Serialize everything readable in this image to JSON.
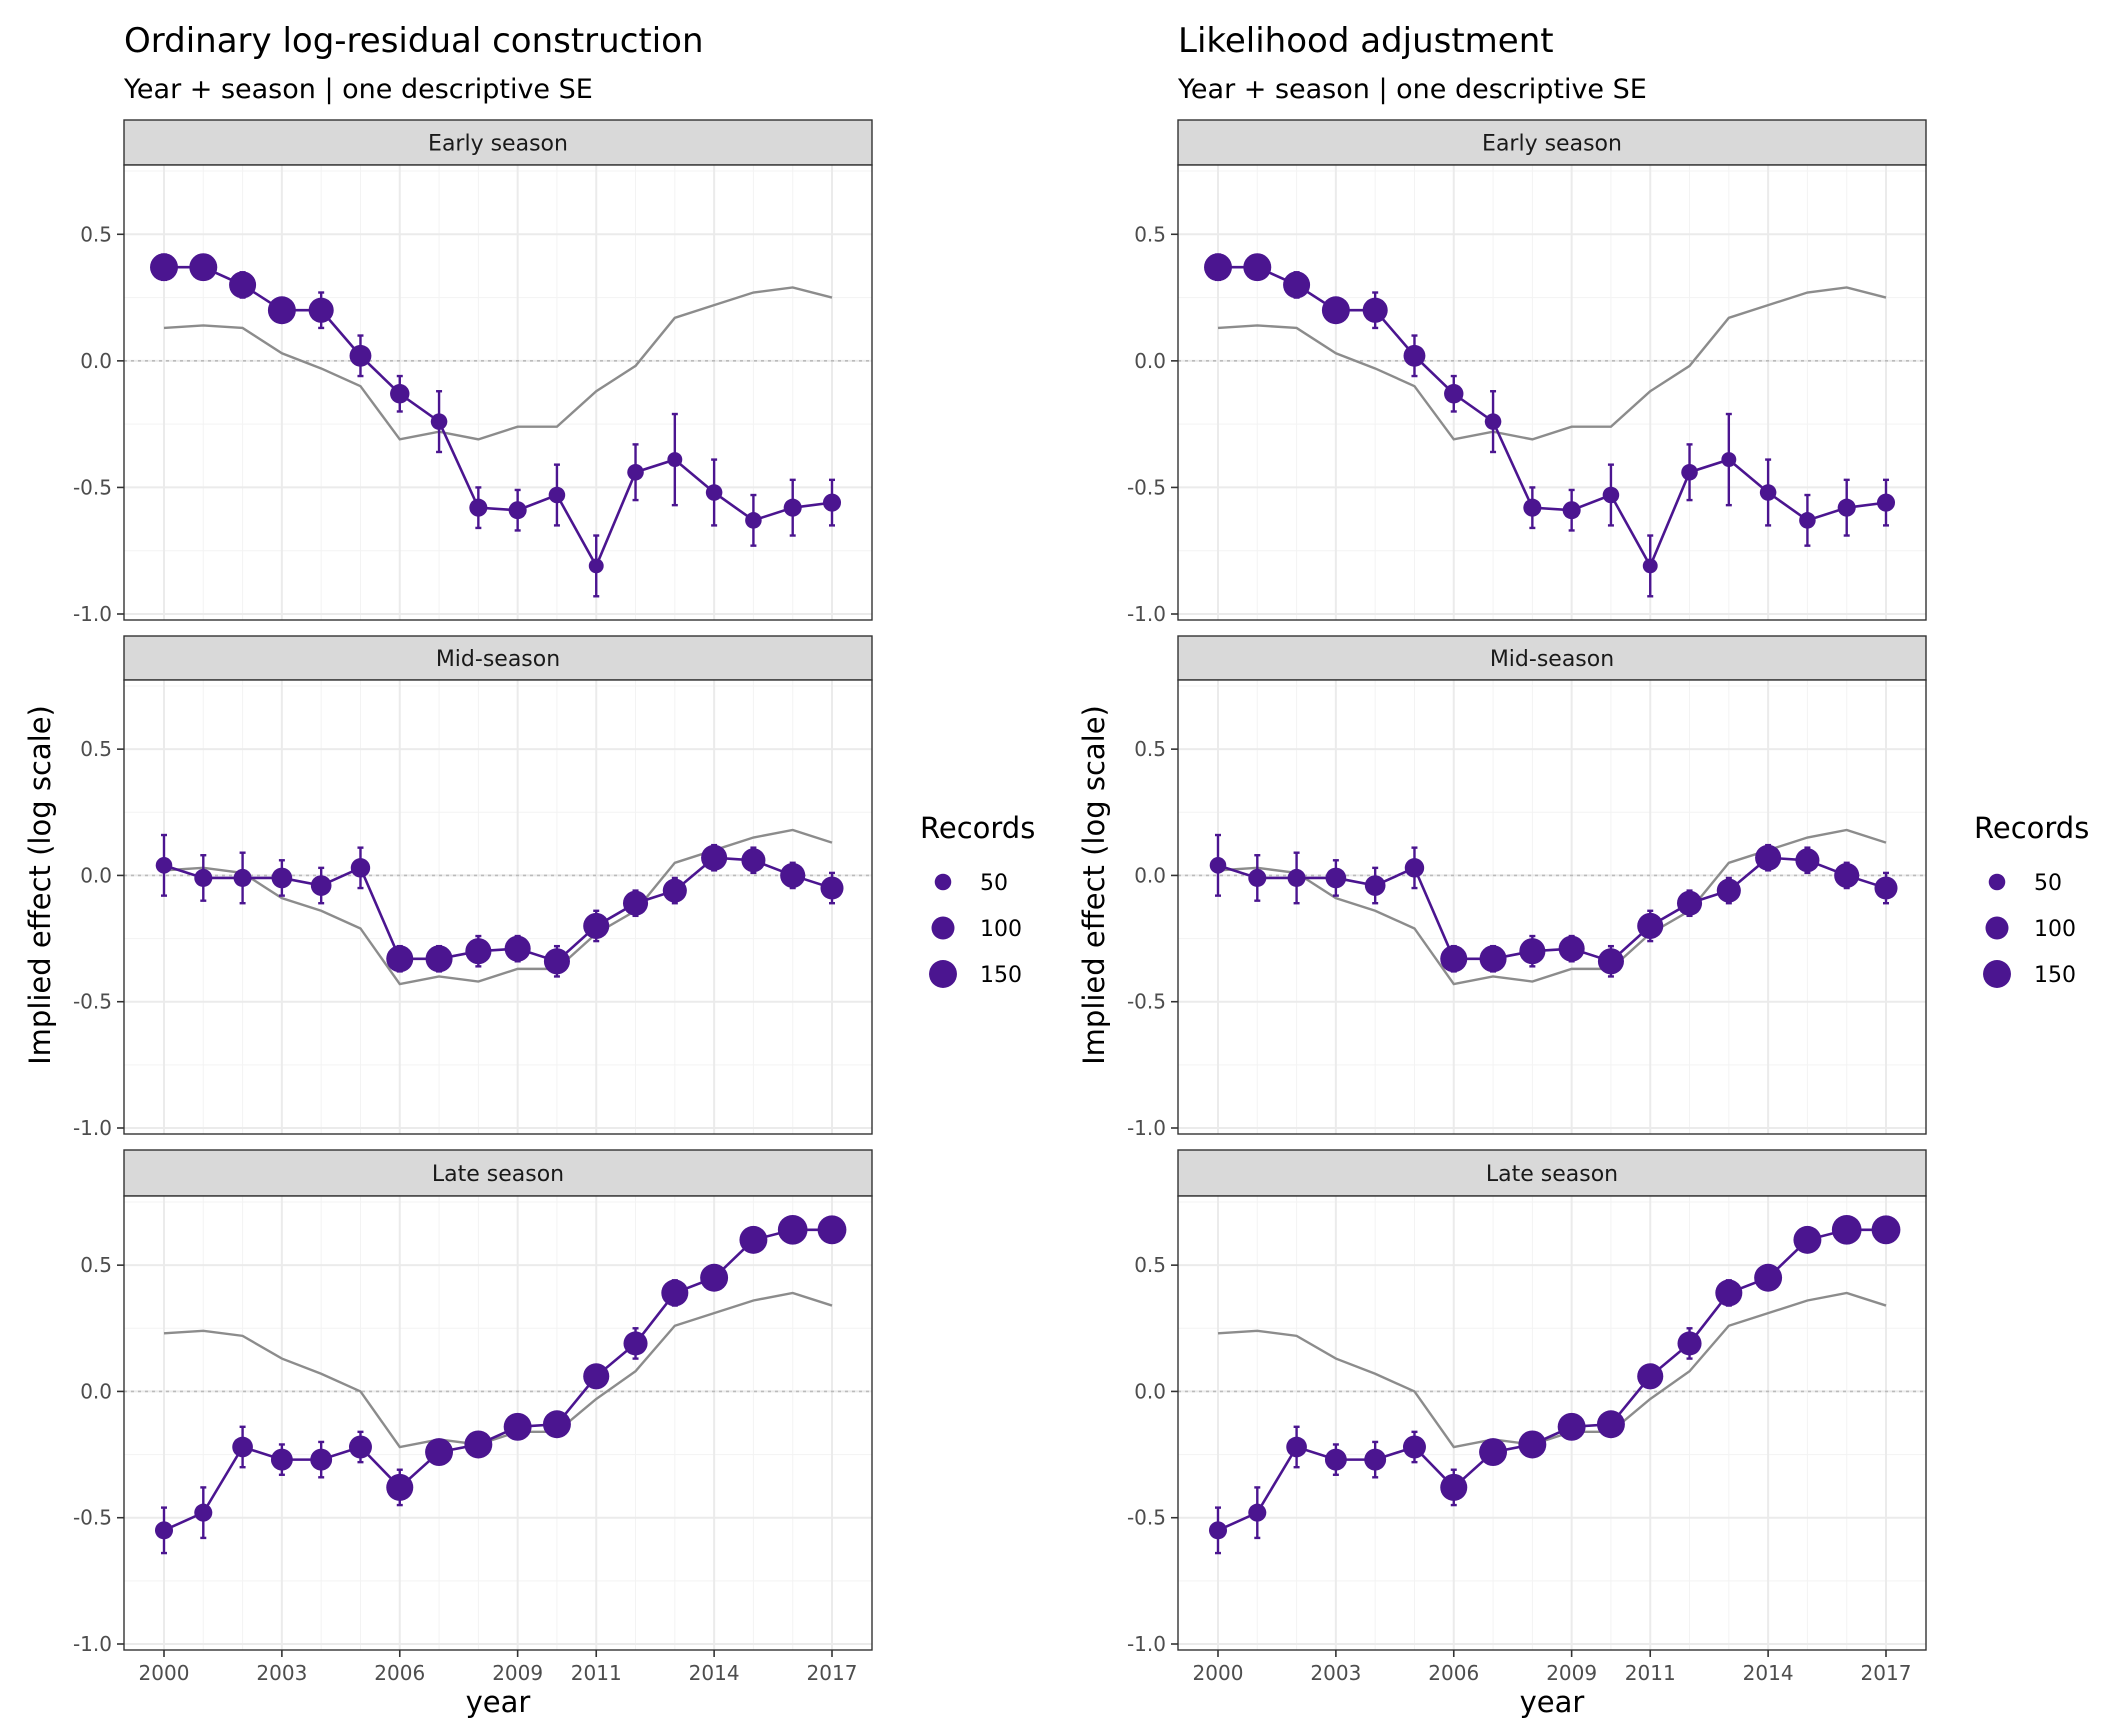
{
  "figure": {
    "xlabel": "year",
    "ylabel": "Implied effect (log scale)",
    "legend": {
      "title": "Records",
      "entries": [
        "50",
        "100",
        "150"
      ],
      "values": [
        50,
        100,
        150
      ],
      "placement": "right"
    },
    "colors": {
      "estimate": "#4b1590",
      "reference": "#8c8c8c",
      "zero_line": "#bbbbbb",
      "strip_bg": "#d9d9d9",
      "grid": "#ebebeb",
      "panel_border": "#333333"
    }
  },
  "chart_data": [
    {
      "type": "line",
      "title": "Ordinary log-residual construction",
      "subtitle": "Year + season | one descriptive SE",
      "xlabel": "year",
      "ylabel": "Implied effect (log scale)",
      "xlim": [
        2000,
        2017
      ],
      "ylim": [
        -1.0,
        0.75
      ],
      "x_ticks": [
        "2000",
        "2003",
        "2006",
        "2009",
        "2011",
        "2014",
        "2017"
      ],
      "x_tick_values": [
        2000,
        2003,
        2006,
        2009,
        2011,
        2014,
        2017
      ],
      "y_ticks": [
        "0.5",
        "0.0",
        "-0.5",
        "-1.0"
      ],
      "y_tick_values": [
        0.5,
        0.0,
        -0.5,
        -1.0
      ],
      "grid": true,
      "zero_line": true,
      "x": [
        2000,
        2001,
        2002,
        2003,
        2004,
        2005,
        2006,
        2007,
        2008,
        2009,
        2010,
        2011,
        2012,
        2013,
        2014,
        2015,
        2016,
        2017
      ],
      "panels": [
        {
          "label": "Early season",
          "estimate": [
            0.37,
            0.37,
            0.3,
            0.2,
            0.2,
            0.02,
            -0.13,
            -0.24,
            -0.58,
            -0.59,
            -0.53,
            -0.81,
            -0.44,
            -0.39,
            -0.52,
            -0.63,
            -0.58,
            -0.56
          ],
          "se": [
            0.05,
            0.04,
            0.05,
            0.04,
            0.07,
            0.08,
            0.07,
            0.12,
            0.08,
            0.08,
            0.12,
            0.12,
            0.11,
            0.18,
            0.13,
            0.1,
            0.11,
            0.09
          ],
          "records": [
            150,
            150,
            140,
            150,
            120,
            90,
            70,
            50,
            60,
            60,
            50,
            40,
            50,
            40,
            50,
            50,
            60,
            60
          ],
          "reference": [
            0.13,
            0.14,
            0.13,
            0.03,
            -0.03,
            -0.1,
            -0.31,
            -0.28,
            -0.31,
            -0.26,
            -0.26,
            -0.12,
            -0.02,
            0.17,
            0.22,
            0.27,
            0.29,
            0.25
          ]
        },
        {
          "label": "Mid-season",
          "estimate": [
            0.04,
            -0.01,
            -0.01,
            -0.01,
            -0.04,
            0.03,
            -0.33,
            -0.33,
            -0.3,
            -0.29,
            -0.34,
            -0.2,
            -0.11,
            -0.06,
            0.07,
            0.06,
            0.0,
            -0.05
          ],
          "se": [
            0.12,
            0.09,
            0.1,
            0.07,
            0.07,
            0.08,
            0.05,
            0.05,
            0.06,
            0.05,
            0.06,
            0.06,
            0.05,
            0.05,
            0.05,
            0.05,
            0.05,
            0.06
          ],
          "records": [
            50,
            60,
            60,
            80,
            80,
            70,
            140,
            140,
            130,
            130,
            130,
            130,
            120,
            110,
            130,
            110,
            120,
            100
          ],
          "reference": [
            0.02,
            0.03,
            0.01,
            -0.09,
            -0.14,
            -0.21,
            -0.43,
            -0.4,
            -0.42,
            -0.37,
            -0.37,
            -0.23,
            -0.14,
            0.05,
            0.1,
            0.15,
            0.18,
            0.13
          ]
        },
        {
          "label": "Late season",
          "estimate": [
            -0.55,
            -0.48,
            -0.22,
            -0.27,
            -0.27,
            -0.22,
            -0.38,
            -0.24,
            -0.21,
            -0.14,
            -0.13,
            0.06,
            0.19,
            0.39,
            0.45,
            0.6,
            0.64,
            0.64
          ],
          "se": [
            0.09,
            0.1,
            0.08,
            0.06,
            0.07,
            0.06,
            0.07,
            0.04,
            0.04,
            0.04,
            0.04,
            0.04,
            0.06,
            0.05,
            0.04,
            0.04,
            0.03,
            0.03
          ],
          "records": [
            60,
            60,
            80,
            90,
            90,
            100,
            140,
            150,
            150,
            150,
            150,
            130,
            110,
            140,
            150,
            150,
            170,
            160
          ],
          "reference": [
            0.23,
            0.24,
            0.22,
            0.13,
            0.07,
            0.0,
            -0.22,
            -0.19,
            -0.21,
            -0.16,
            -0.16,
            -0.03,
            0.08,
            0.26,
            0.31,
            0.36,
            0.39,
            0.34
          ]
        }
      ]
    },
    {
      "type": "line",
      "title": "Likelihood adjustment",
      "subtitle": "Year + season | one descriptive SE",
      "xlabel": "year",
      "ylabel": "Implied effect (log scale)",
      "xlim": [
        2000,
        2017
      ],
      "ylim": [
        -1.0,
        0.75
      ],
      "x_ticks": [
        "2000",
        "2003",
        "2006",
        "2009",
        "2011",
        "2014",
        "2017"
      ],
      "x_tick_values": [
        2000,
        2003,
        2006,
        2009,
        2011,
        2014,
        2017
      ],
      "y_ticks": [
        "0.5",
        "0.0",
        "-0.5",
        "-1.0"
      ],
      "y_tick_values": [
        0.5,
        0.0,
        -0.5,
        -1.0
      ],
      "grid": true,
      "zero_line": true,
      "x": [
        2000,
        2001,
        2002,
        2003,
        2004,
        2005,
        2006,
        2007,
        2008,
        2009,
        2010,
        2011,
        2012,
        2013,
        2014,
        2015,
        2016,
        2017
      ],
      "panels": [
        {
          "label": "Early season",
          "estimate": [
            0.37,
            0.37,
            0.3,
            0.2,
            0.2,
            0.02,
            -0.13,
            -0.24,
            -0.58,
            -0.59,
            -0.53,
            -0.81,
            -0.44,
            -0.39,
            -0.52,
            -0.63,
            -0.58,
            -0.56
          ],
          "se": [
            0.05,
            0.04,
            0.05,
            0.04,
            0.07,
            0.08,
            0.07,
            0.12,
            0.08,
            0.08,
            0.12,
            0.12,
            0.11,
            0.18,
            0.13,
            0.1,
            0.11,
            0.09
          ],
          "records": [
            150,
            150,
            140,
            150,
            120,
            90,
            70,
            50,
            60,
            60,
            50,
            40,
            50,
            40,
            50,
            50,
            60,
            60
          ],
          "reference": [
            0.13,
            0.14,
            0.13,
            0.03,
            -0.03,
            -0.1,
            -0.31,
            -0.28,
            -0.31,
            -0.26,
            -0.26,
            -0.12,
            -0.02,
            0.17,
            0.22,
            0.27,
            0.29,
            0.25
          ]
        },
        {
          "label": "Mid-season",
          "estimate": [
            0.04,
            -0.01,
            -0.01,
            -0.01,
            -0.04,
            0.03,
            -0.33,
            -0.33,
            -0.3,
            -0.29,
            -0.34,
            -0.2,
            -0.11,
            -0.06,
            0.07,
            0.06,
            0.0,
            -0.05
          ],
          "se": [
            0.12,
            0.09,
            0.1,
            0.07,
            0.07,
            0.08,
            0.05,
            0.05,
            0.06,
            0.05,
            0.06,
            0.06,
            0.05,
            0.05,
            0.05,
            0.05,
            0.05,
            0.06
          ],
          "records": [
            50,
            60,
            60,
            80,
            80,
            70,
            140,
            140,
            130,
            130,
            130,
            130,
            120,
            110,
            130,
            110,
            120,
            100
          ],
          "reference": [
            0.02,
            0.03,
            0.01,
            -0.09,
            -0.14,
            -0.21,
            -0.43,
            -0.4,
            -0.42,
            -0.37,
            -0.37,
            -0.23,
            -0.14,
            0.05,
            0.1,
            0.15,
            0.18,
            0.13
          ]
        },
        {
          "label": "Late season",
          "estimate": [
            -0.55,
            -0.48,
            -0.22,
            -0.27,
            -0.27,
            -0.22,
            -0.38,
            -0.24,
            -0.21,
            -0.14,
            -0.13,
            0.06,
            0.19,
            0.39,
            0.45,
            0.6,
            0.64,
            0.64
          ],
          "se": [
            0.09,
            0.1,
            0.08,
            0.06,
            0.07,
            0.06,
            0.07,
            0.04,
            0.04,
            0.04,
            0.04,
            0.04,
            0.06,
            0.05,
            0.04,
            0.04,
            0.03,
            0.03
          ],
          "records": [
            60,
            60,
            80,
            90,
            90,
            100,
            140,
            150,
            150,
            150,
            150,
            130,
            110,
            140,
            150,
            150,
            170,
            160
          ],
          "reference": [
            0.23,
            0.24,
            0.22,
            0.13,
            0.07,
            0.0,
            -0.22,
            -0.19,
            -0.21,
            -0.16,
            -0.16,
            -0.03,
            0.08,
            0.26,
            0.31,
            0.36,
            0.39,
            0.34
          ]
        }
      ]
    }
  ]
}
